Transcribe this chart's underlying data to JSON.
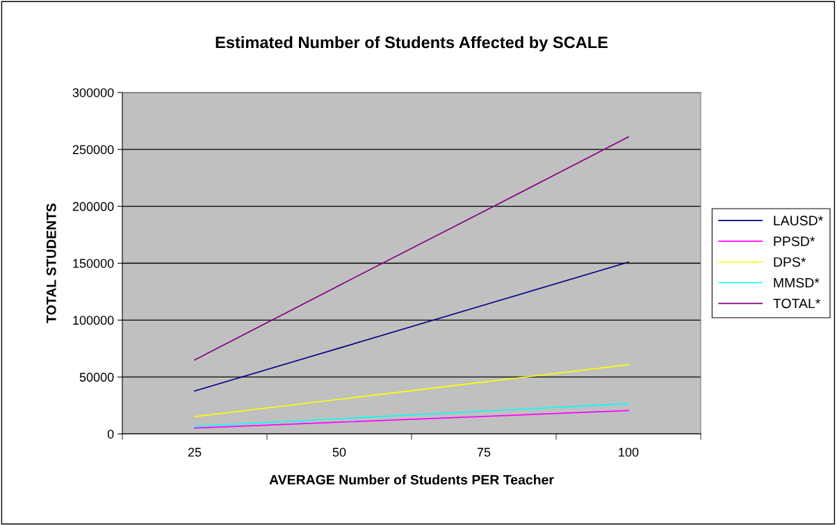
{
  "chart_data": {
    "type": "line",
    "title": "Estimated Number of Students Affected by SCALE",
    "xlabel": "AVERAGE Number of Students PER Teacher",
    "ylabel": "TOTAL STUDENTS",
    "categories": [
      "25",
      "50",
      "75",
      "100"
    ],
    "series": [
      {
        "name": "LAUSD*",
        "color": "#000080",
        "values": [
          37700,
          75400,
          113200,
          150900
        ]
      },
      {
        "name": "PPSD*",
        "color": "#ff00ff",
        "values": [
          5100,
          10300,
          15400,
          20500
        ]
      },
      {
        "name": "DPS*",
        "color": "#ffff00",
        "values": [
          15200,
          30400,
          45600,
          60800
        ]
      },
      {
        "name": "MMSD*",
        "color": "#00ffff",
        "values": [
          6700,
          13300,
          20000,
          26600
        ]
      },
      {
        "name": "TOTAL*",
        "color": "#800080",
        "values": [
          65000,
          130500,
          195500,
          261000
        ]
      }
    ],
    "ylim": [
      0,
      300000
    ],
    "yticks": [
      0,
      50000,
      100000,
      150000,
      200000,
      250000,
      300000
    ],
    "grid": "y",
    "legend": "right",
    "marker": "none",
    "line_style": "solid"
  }
}
